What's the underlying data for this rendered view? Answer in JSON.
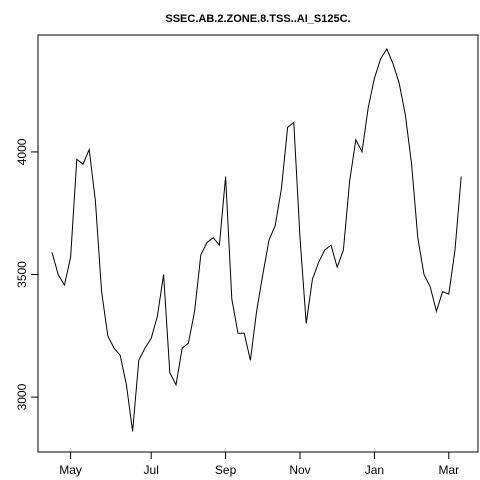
{
  "chart_data": {
    "type": "line",
    "title": "SSEC.AB.2.ZONE.8.TSS..AI_S125C.",
    "categories": [
      null,
      null,
      null,
      "May",
      null,
      null,
      null,
      null,
      null,
      null,
      null,
      null,
      null,
      null,
      null,
      null,
      "Jul",
      null,
      null,
      null,
      null,
      null,
      null,
      null,
      null,
      null,
      null,
      null,
      "Sep",
      null,
      null,
      null,
      null,
      null,
      null,
      null,
      null,
      null,
      null,
      null,
      "Nov",
      null,
      null,
      null,
      null,
      null,
      null,
      null,
      null,
      null,
      null,
      null,
      "Jan",
      null,
      null,
      null,
      null,
      null,
      null,
      null,
      null,
      null,
      null,
      null,
      "Mar",
      null,
      null
    ],
    "values": [
      3590,
      3500,
      3457,
      3570,
      3970,
      3950,
      4010,
      3800,
      3430,
      3250,
      3200,
      3170,
      3050,
      2860,
      3150,
      3200,
      3240,
      3330,
      3500,
      3100,
      3050,
      3200,
      3220,
      3350,
      3580,
      3630,
      3650,
      3620,
      3900,
      3400,
      3260,
      3260,
      3150,
      3350,
      3500,
      3640,
      3700,
      3850,
      4100,
      4120,
      3650,
      3300,
      3480,
      3550,
      3600,
      3620,
      3530,
      3600,
      3880,
      4050,
      4000,
      4180,
      4300,
      4380,
      4420,
      4360,
      4280,
      4150,
      3950,
      3650,
      3500,
      3450,
      3350,
      3430,
      3420,
      3600,
      3900
    ],
    "color": "#000000",
    "ylim": [
      2776,
      4477
    ],
    "yticks": [
      3000,
      3500,
      4000
    ],
    "grid": false
  }
}
